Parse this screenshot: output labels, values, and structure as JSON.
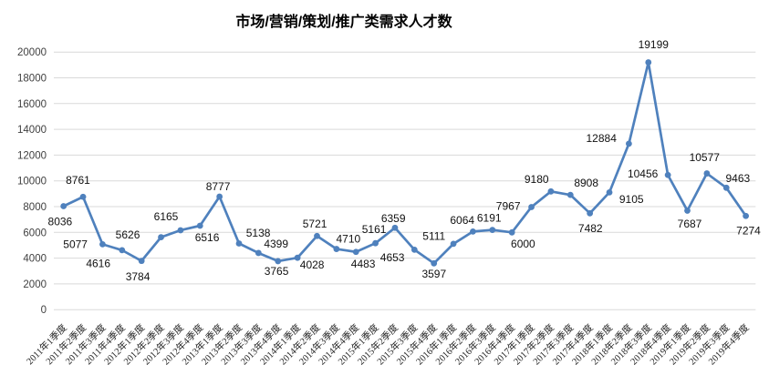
{
  "chart_data": {
    "type": "line",
    "title": "市场/营销/策划/推广类需求人才数",
    "xlabel": "",
    "ylabel": "",
    "categories": [
      "2011年1季度",
      "2011年2季度",
      "2011年3季度",
      "2011年4季度",
      "2012年1季度",
      "2012年2季度",
      "2012年3季度",
      "2012年4季度",
      "2013年1季度",
      "2013年2季度",
      "2013年3季度",
      "2013年4季度",
      "2014年1季度",
      "2014年2季度",
      "2014年3季度",
      "2014年4季度",
      "2015年1季度",
      "2015年2季度",
      "2015年3季度",
      "2015年4季度",
      "2016年1季度",
      "2016年2季度",
      "2016年3季度",
      "2016年4季度",
      "2017年1季度",
      "2017年2季度",
      "2017年3季度",
      "2017年4季度",
      "2018年1季度",
      "2018年2季度",
      "2018年3季度",
      "2018年4季度",
      "2019年1季度",
      "2019年2季度",
      "2019年3季度",
      "2019年4季度"
    ],
    "values": [
      8036,
      8761,
      5077,
      4616,
      3784,
      5626,
      6165,
      6516,
      8777,
      5138,
      4399,
      3765,
      4028,
      5721,
      4710,
      4483,
      5161,
      6359,
      4653,
      3597,
      5111,
      6064,
      6191,
      6000,
      7967,
      9180,
      8908,
      7482,
      9105,
      12884,
      19199,
      10456,
      7687,
      10577,
      9463,
      7274
    ],
    "data_labels_visible": true,
    "markers": true,
    "legend": "none",
    "grid": "horizontal",
    "ylim": [
      0,
      20000
    ],
    "ytick_step": 2000,
    "x_tick_rotation_deg": 45,
    "colors": {
      "series": "#4F81BD",
      "gridline": "#D9D9D9",
      "axis_text": "#404040",
      "category_text": "#262626",
      "data_label_text": "#111111",
      "title_text": "#000000",
      "background": "#FFFFFF"
    },
    "label_offsets": [
      [
        -3.8,
        16.7
      ],
      [
        -5.6,
        -18.4
      ],
      [
        -29.8,
        -0.3
      ],
      [
        -26.1,
        14.2
      ],
      [
        -4.1,
        17.3
      ],
      [
        -36.5,
        -2.6
      ],
      [
        -15.9,
        -15.0
      ],
      [
        7.8,
        13.0
      ],
      [
        -1.6,
        -11.0
      ],
      [
        21.1,
        -11.5
      ],
      [
        19.3,
        -10.0
      ],
      [
        -1.7,
        11.1
      ],
      [
        16.0,
        7.8
      ],
      [
        -2.4,
        -13.3
      ],
      [
        13.0,
        -11.1
      ],
      [
        7.9,
        12.9
      ],
      [
        -1.5,
        -15.5
      ],
      [
        -1.8,
        -10.2
      ],
      [
        -24.2,
        8.6
      ],
      [
        0.1,
        11.3
      ],
      [
        -21.3,
        -8.5
      ],
      [
        -11.7,
        -12.4
      ],
      [
        -3.6,
        -13.1
      ],
      [
        12.2,
        12.7
      ],
      [
        -25.4,
        -1.0
      ],
      [
        -15.7,
        -13.3
      ],
      [
        17.4,
        -13.2
      ],
      [
        0.6,
        16.7
      ],
      [
        24.2,
        7.2
      ],
      [
        -30.2,
        -5.9
      ],
      [
        5.5,
        -19.5
      ],
      [
        -27.5,
        -1.5
      ],
      [
        2.5,
        14.4
      ],
      [
        -2.6,
        -17.9
      ],
      [
        12.6,
        -10.3
      ],
      [
        2.9,
        16.2
      ]
    ]
  }
}
